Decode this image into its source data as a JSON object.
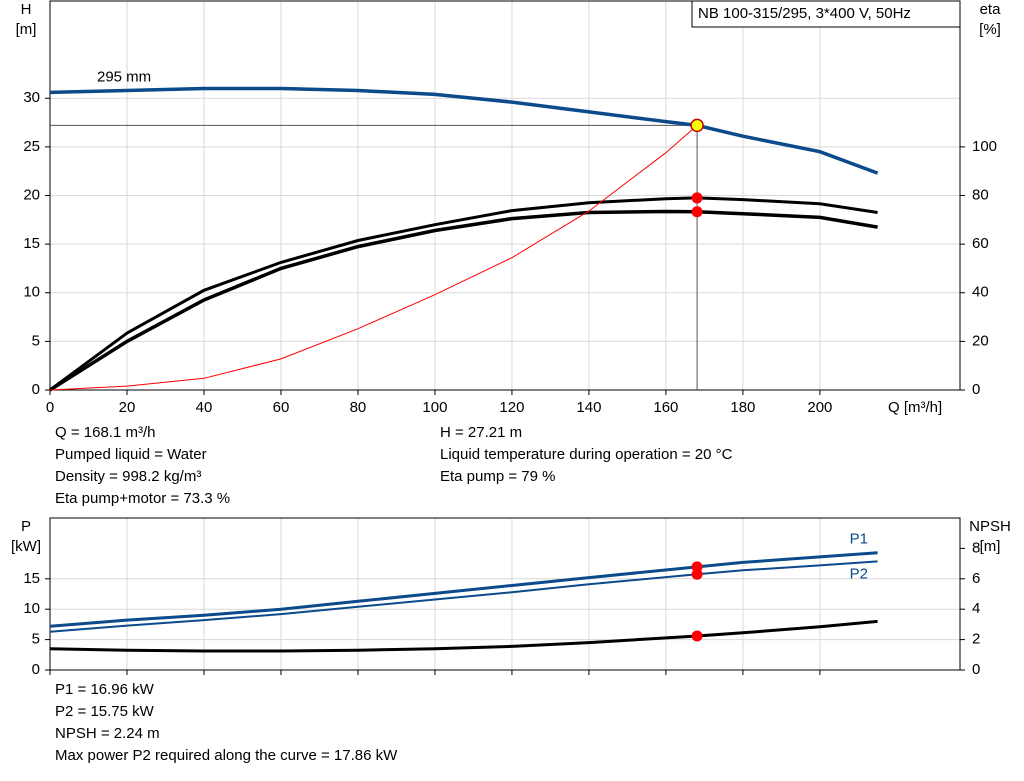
{
  "chart_data": [
    {
      "type": "line",
      "title": "NB 100-315/295, 3*400 V, 50Hz",
      "xlabel": "Q [m³/h]",
      "ylabel": "H",
      "yunit": "[m]",
      "y2label": "eta",
      "y2unit": "[%]",
      "xlim": [
        0,
        236.4
      ],
      "xticks": [
        0,
        20,
        40,
        60,
        80,
        100,
        120,
        140,
        160,
        180,
        200
      ],
      "ylim": [
        0,
        40
      ],
      "yticks": [
        0,
        5,
        10,
        15,
        20,
        25,
        30
      ],
      "y2lim": [
        0,
        160
      ],
      "y2ticks": [
        0,
        20,
        40,
        60,
        80,
        100
      ],
      "grid": true,
      "series": [
        {
          "name": "295 mm",
          "color": "#0b4a8b",
          "x": [
            0,
            20,
            40,
            60,
            80,
            100,
            120,
            140,
            160,
            168.1,
            180,
            200,
            215
          ],
          "values": [
            30.6,
            30.8,
            31.0,
            31.0,
            30.8,
            30.4,
            29.6,
            28.6,
            27.6,
            27.21,
            26.1,
            24.5,
            22.3
          ]
        },
        {
          "color": "#000000",
          "axis": "y2",
          "x": [
            0,
            20,
            40,
            60,
            80,
            100,
            120,
            140,
            160,
            168.1,
            180,
            200,
            215
          ],
          "values": [
            0,
            23.4,
            41,
            52.5,
            61.5,
            68,
            73.8,
            77,
            78.7,
            79,
            78.3,
            76.6,
            73
          ]
        },
        {
          "color": "#000000",
          "axis": "y2",
          "x": [
            0,
            20,
            40,
            60,
            80,
            100,
            120,
            140,
            160,
            168.1,
            180,
            200,
            215
          ],
          "values": [
            0,
            20,
            37,
            50,
            59,
            65.6,
            70.5,
            73,
            73.4,
            73.3,
            72.5,
            71,
            67
          ]
        },
        {
          "color": "#ff0000",
          "x": [
            0,
            20,
            40,
            60,
            80,
            100,
            120,
            140,
            160,
            168.1
          ],
          "values": [
            0,
            0.4,
            1.2,
            3.2,
            6.3,
            9.8,
            13.6,
            18.4,
            24.4,
            27.21
          ]
        }
      ],
      "operating_point": {
        "x": 168.1,
        "y": 27.21,
        "color": "#ffff00"
      },
      "markers": [
        {
          "x": 168.1,
          "y": 79,
          "axis": "y2",
          "color": "#ff0000"
        },
        {
          "x": 168.1,
          "y": 73.3,
          "axis": "y2",
          "color": "#ff0000"
        }
      ],
      "notes": [
        [
          "Q = 168.1 m³/h",
          "Pumped liquid = Water",
          "Density = 998.2 kg/m³",
          "Eta pump+motor = 73.3 %"
        ],
        [
          "H = 27.21 m",
          "Liquid temperature during operation = 20 °C",
          "Eta pump = 79 %"
        ]
      ]
    },
    {
      "type": "line",
      "ylabel": "P",
      "yunit": "[kW]",
      "y2label": "NPSH",
      "y2unit": "[m]",
      "xlim": [
        0,
        236.4
      ],
      "xticks": [
        0,
        20,
        40,
        60,
        80,
        100,
        120,
        140,
        160,
        180,
        200
      ],
      "ylim": [
        0,
        25
      ],
      "yticks": [
        0,
        5,
        10,
        15
      ],
      "y2lim": [
        0,
        10
      ],
      "y2ticks": [
        0,
        2,
        4,
        6,
        8
      ],
      "grid": true,
      "series": [
        {
          "name": "P1",
          "color": "#0b4a8b",
          "x": [
            0,
            20,
            40,
            60,
            80,
            100,
            120,
            140,
            168.1,
            180,
            200,
            215
          ],
          "values": [
            7.2,
            8.2,
            9.0,
            10.0,
            11.3,
            12.6,
            13.9,
            15.2,
            16.96,
            17.7,
            18.6,
            19.3
          ]
        },
        {
          "name": "P2",
          "color": "#0b4a8b",
          "x": [
            0,
            20,
            40,
            60,
            80,
            100,
            120,
            140,
            168.1,
            180,
            200,
            215
          ],
          "values": [
            6.3,
            7.3,
            8.2,
            9.2,
            10.4,
            11.6,
            12.8,
            14.1,
            15.75,
            16.4,
            17.2,
            17.86
          ]
        },
        {
          "color": "#000000",
          "axis": "y2",
          "x": [
            0,
            20,
            40,
            60,
            80,
            100,
            120,
            140,
            168.1,
            180,
            200,
            215
          ],
          "values": [
            1.4,
            1.3,
            1.25,
            1.25,
            1.3,
            1.4,
            1.55,
            1.8,
            2.24,
            2.45,
            2.85,
            3.2
          ]
        }
      ],
      "markers": [
        {
          "x": 168.1,
          "y": 16.96,
          "color": "#ff0000"
        },
        {
          "x": 168.1,
          "y": 15.75,
          "color": "#ff0000"
        },
        {
          "x": 168.1,
          "y": 2.24,
          "axis": "y2",
          "color": "#ff0000"
        }
      ],
      "notes": [
        [
          "P1 = 16.96 kW",
          "P2 = 15.75 kW",
          "NPSH = 2.24 m",
          "Max power P2 required along the curve = 17.86 kW"
        ]
      ]
    }
  ]
}
